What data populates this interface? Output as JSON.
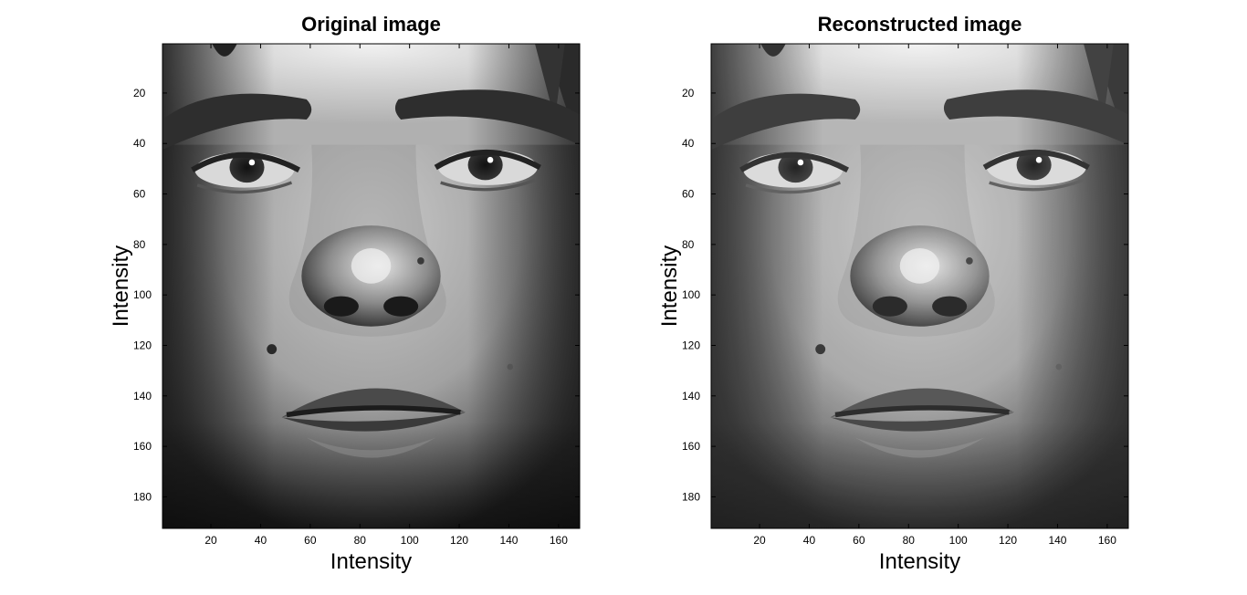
{
  "chart_data": [
    {
      "type": "heatmap",
      "title": "Original image",
      "xlabel": "Intensity",
      "ylabel": "Intensity",
      "xlim": [
        0.5,
        168.5
      ],
      "ylim": [
        0.5,
        192.5
      ],
      "y_direction": "reversed",
      "x_ticks": [
        20,
        40,
        60,
        80,
        100,
        120,
        140,
        160
      ],
      "y_ticks": [
        20,
        40,
        60,
        80,
        100,
        120,
        140,
        160,
        180
      ],
      "colormap": "gray",
      "content": "grayscale frontal face photograph"
    },
    {
      "type": "heatmap",
      "title": "Reconstructed image",
      "xlabel": "Intensity",
      "ylabel": "Intensity",
      "xlim": [
        0.5,
        168.5
      ],
      "ylim": [
        0.5,
        192.5
      ],
      "y_direction": "reversed",
      "x_ticks": [
        20,
        40,
        60,
        80,
        100,
        120,
        140,
        160
      ],
      "y_ticks": [
        20,
        40,
        60,
        80,
        100,
        120,
        140,
        160,
        180
      ],
      "colormap": "gray",
      "content": "grayscale frontal face photograph (reconstruction)"
    }
  ]
}
